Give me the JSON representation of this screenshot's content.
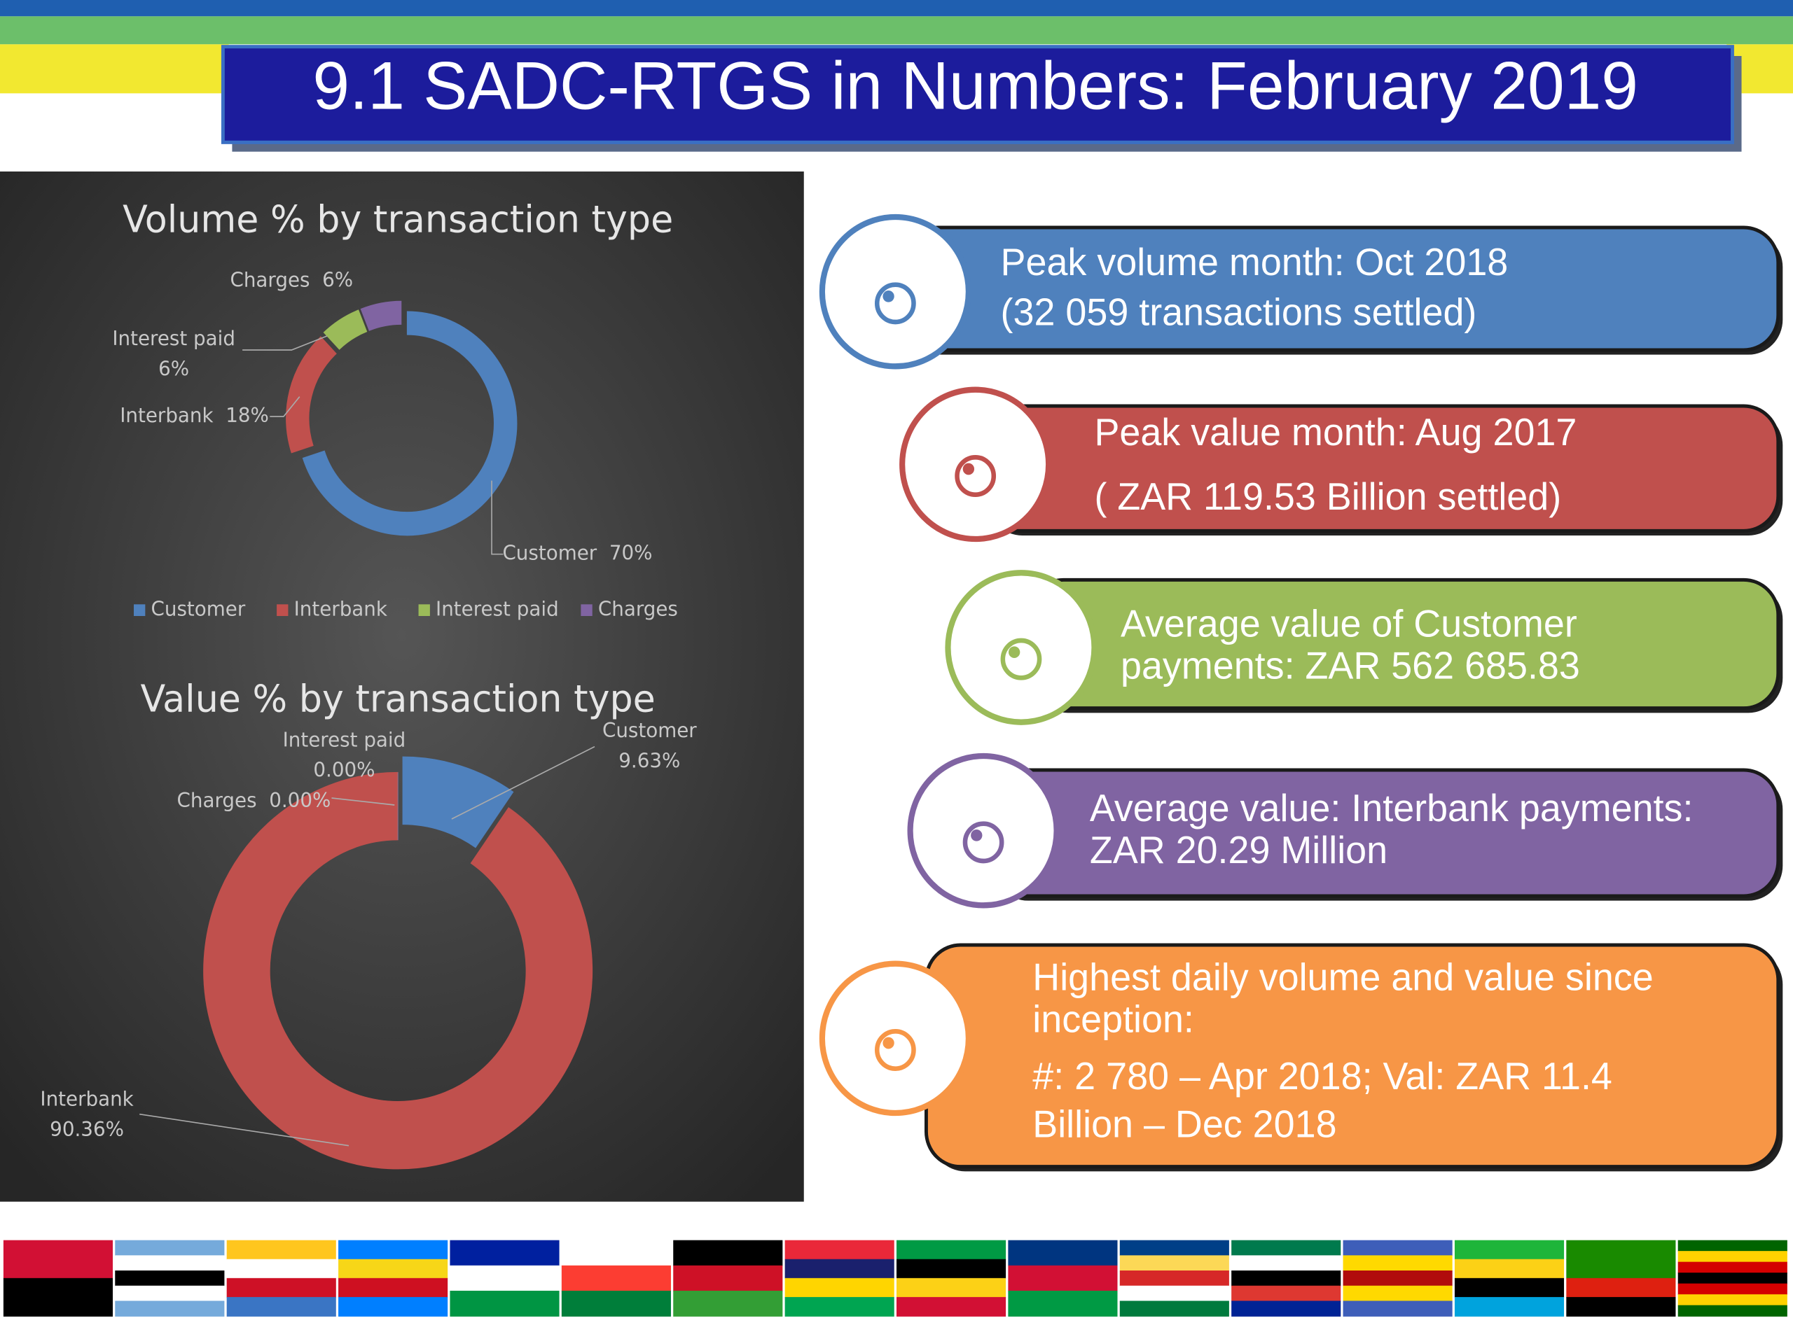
{
  "title": "9.1 SADC-RTGS in Numbers: February 2019",
  "chart_data": [
    {
      "type": "donut",
      "title": "Volume % by transaction type",
      "categories": [
        "Customer",
        "Interbank",
        "Interest paid",
        "Charges"
      ],
      "values": [
        70,
        18,
        6,
        6
      ],
      "value_labels": [
        "70%",
        "18%",
        "6%",
        "6%"
      ],
      "colors": [
        "#4f81bd",
        "#c0504d",
        "#9bbb59",
        "#8064a2"
      ],
      "legend": true
    },
    {
      "type": "donut",
      "title": "Value % by transaction type",
      "categories": [
        "Customer",
        "Interbank",
        "Interest paid",
        "Charges"
      ],
      "values": [
        9.63,
        90.36,
        0.0,
        0.0
      ],
      "value_labels": [
        "9.63%",
        "90.36%",
        "0.00%",
        "0.00%"
      ],
      "colors": [
        "#4f81bd",
        "#c0504d",
        "#9bbb59",
        "#8064a2"
      ],
      "legend": false
    }
  ],
  "info_boxes": [
    {
      "lines": [
        "Peak volume month: Oct 2018",
        "(32 059 transactions settled)"
      ]
    },
    {
      "lines": [
        "Peak value month: Aug 2017",
        "( ZAR 119.53 Billion settled)"
      ]
    },
    {
      "lines": [
        "Average value of Customer",
        "payments: ZAR 562 685.83"
      ]
    },
    {
      "lines": [
        "Average value: Interbank payments:",
        "ZAR 20.29 Million"
      ]
    },
    {
      "lines": [
        "Highest daily volume and value since",
        "inception:",
        "#: 2 780 – Apr 2018; Val: ZAR 11.4",
        "Billion – Dec 2018"
      ]
    }
  ]
}
